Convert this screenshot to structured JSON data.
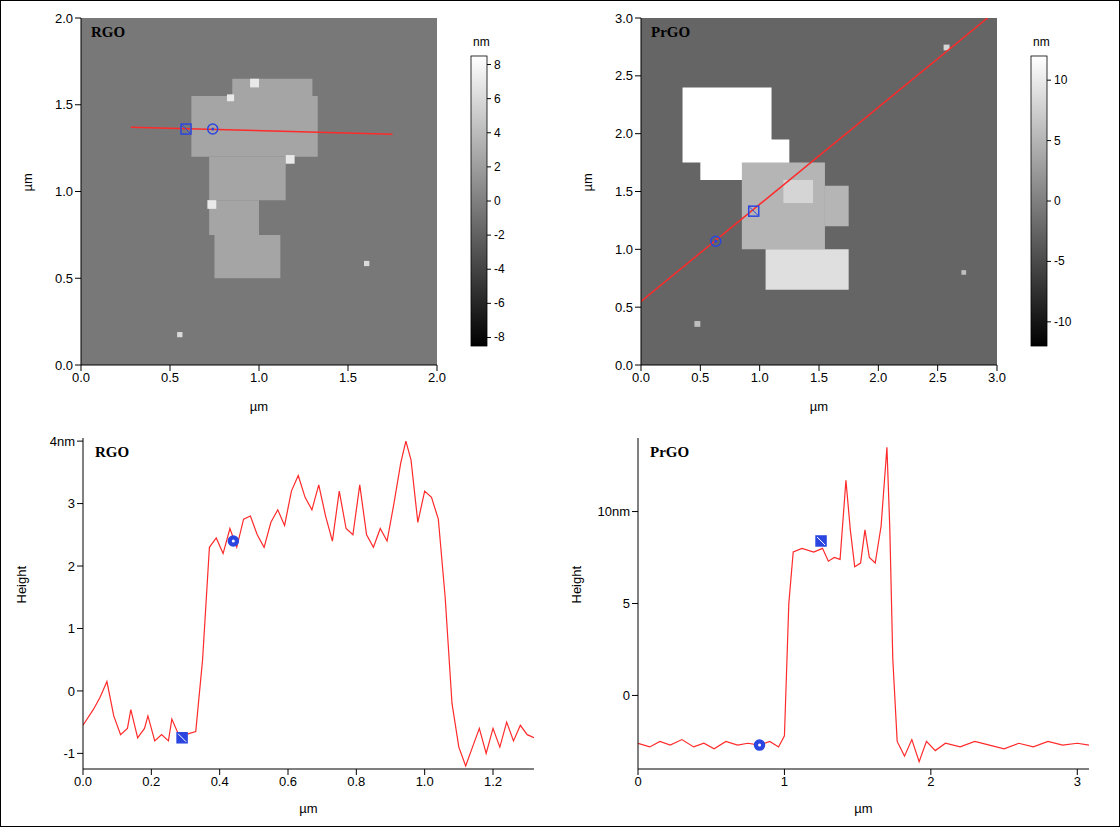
{
  "chart_data": [
    {
      "type": "heatmap",
      "title": "RGO",
      "xlabel": "µm",
      "ylabel": "µm",
      "xlim": [
        0,
        2
      ],
      "ylim": [
        0,
        2
      ],
      "xticks": [
        {
          "value": 0,
          "label": "0.0"
        },
        {
          "value": 0.5,
          "label": "0.5"
        },
        {
          "value": 1,
          "label": "1.0"
        },
        {
          "value": 1.5,
          "label": "1.5"
        },
        {
          "value": 2,
          "label": "2.0"
        }
      ],
      "yticks": [
        {
          "value": 0,
          "label": "0.0"
        },
        {
          "value": 0.5,
          "label": "0.5"
        },
        {
          "value": 1,
          "label": "1.0"
        },
        {
          "value": 1.5,
          "label": "1.5"
        },
        {
          "value": 2,
          "label": "2.0"
        }
      ],
      "background_height": -0.5,
      "regions": [
        [
          0.62,
          1.33,
          1.2,
          1.55,
          2.5
        ],
        [
          0.85,
          1.3,
          1.55,
          1.65,
          2.5
        ],
        [
          0.72,
          1.15,
          0.95,
          1.2,
          2.5
        ],
        [
          0.72,
          1.0,
          0.75,
          0.95,
          2.5
        ],
        [
          0.75,
          1.12,
          0.5,
          0.75,
          2.5
        ],
        [
          0.95,
          1.0,
          1.6,
          1.65,
          7
        ],
        [
          0.71,
          0.76,
          0.9,
          0.95,
          7
        ],
        [
          1.15,
          1.2,
          1.16,
          1.21,
          7
        ],
        [
          0.82,
          0.86,
          1.52,
          1.56,
          7
        ],
        [
          0.54,
          0.57,
          0.16,
          0.19,
          6
        ],
        [
          1.59,
          1.62,
          0.57,
          0.6,
          6
        ]
      ],
      "colorbar": {
        "label": "nm",
        "range": [
          -8.5,
          8.5
        ],
        "ticks": [
          8,
          6,
          4,
          2,
          0,
          -2,
          -4,
          -6,
          -8
        ]
      },
      "scan_line": {
        "start": [
          0.28,
          1.37
        ],
        "end": [
          1.75,
          1.33
        ],
        "color": "#ff2a2a"
      },
      "markers": [
        {
          "x": 0.59,
          "y": 1.36,
          "marker": "square",
          "color": "#2b46e0"
        },
        {
          "x": 0.74,
          "y": 1.36,
          "marker": "circle",
          "color": "#2b46e0"
        }
      ]
    },
    {
      "type": "heatmap",
      "title": "PrGO",
      "xlabel": "µm",
      "ylabel": "µm",
      "xlim": [
        0,
        3
      ],
      "ylim": [
        0,
        3
      ],
      "xticks": [
        {
          "value": 0,
          "label": "0.0"
        },
        {
          "value": 0.5,
          "label": "0.5"
        },
        {
          "value": 1,
          "label": "1.0"
        },
        {
          "value": 1.5,
          "label": "1.5"
        },
        {
          "value": 2,
          "label": "2.0"
        },
        {
          "value": 2.5,
          "label": "2.5"
        },
        {
          "value": 3,
          "label": "3.0"
        }
      ],
      "yticks": [
        {
          "value": 0,
          "label": "0.0"
        },
        {
          "value": 0.5,
          "label": "0.5"
        },
        {
          "value": 1,
          "label": "1.0"
        },
        {
          "value": 1.5,
          "label": "1.5"
        },
        {
          "value": 2,
          "label": "2.0"
        },
        {
          "value": 2.5,
          "label": "2.5"
        },
        {
          "value": 3,
          "label": "3.0"
        }
      ],
      "background_height": -2.5,
      "regions": [
        [
          0.35,
          1.1,
          1.75,
          2.4,
          13
        ],
        [
          0.5,
          1.25,
          1.6,
          1.95,
          13
        ],
        [
          0.85,
          1.55,
          1.0,
          1.75,
          5
        ],
        [
          1.55,
          1.75,
          1.2,
          1.55,
          5
        ],
        [
          1.05,
          1.75,
          0.65,
          1.0,
          9
        ],
        [
          1.2,
          1.45,
          1.4,
          1.6,
          8
        ],
        [
          2.55,
          2.6,
          2.72,
          2.77,
          8
        ],
        [
          0.45,
          0.5,
          0.33,
          0.38,
          6
        ],
        [
          2.7,
          2.74,
          0.78,
          0.82,
          6
        ]
      ],
      "colorbar": {
        "label": "nm",
        "range": [
          -12,
          12
        ],
        "ticks": [
          10,
          5,
          0,
          -5,
          -10
        ]
      },
      "scan_line": {
        "start": [
          0,
          0.55
        ],
        "end": [
          2.92,
          3
        ],
        "color": "#ff2a2a"
      },
      "markers": [
        {
          "x": 0.63,
          "y": 1.07,
          "marker": "circle",
          "color": "#2b46e0"
        },
        {
          "x": 0.95,
          "y": 1.33,
          "marker": "square",
          "color": "#2b46e0"
        }
      ]
    },
    {
      "type": "line",
      "title": "RGO",
      "xlabel": "µm",
      "ylabel": "Height",
      "color": "#ff2a2a",
      "xlim": [
        0,
        1.32
      ],
      "ylim": [
        -1.25,
        4.05
      ],
      "xticks": [
        {
          "value": 0,
          "label": "0.0"
        },
        {
          "value": 0.2,
          "label": "0.2"
        },
        {
          "value": 0.4,
          "label": "0.4"
        },
        {
          "value": 0.6,
          "label": "0.6"
        },
        {
          "value": 0.8,
          "label": "0.8"
        },
        {
          "value": 1,
          "label": "1.0"
        },
        {
          "value": 1.2,
          "label": "1.2"
        }
      ],
      "yticks": [
        -1,
        0,
        1,
        2,
        3,
        {
          "value": 4,
          "label": "4nm"
        }
      ],
      "x": [
        0,
        0.03,
        0.05,
        0.07,
        0.09,
        0.11,
        0.13,
        0.14,
        0.16,
        0.18,
        0.19,
        0.21,
        0.23,
        0.25,
        0.26,
        0.28,
        0.3,
        0.33,
        0.35,
        0.37,
        0.39,
        0.41,
        0.43,
        0.45,
        0.47,
        0.49,
        0.51,
        0.53,
        0.55,
        0.57,
        0.59,
        0.61,
        0.63,
        0.65,
        0.67,
        0.69,
        0.71,
        0.73,
        0.75,
        0.77,
        0.79,
        0.81,
        0.83,
        0.85,
        0.87,
        0.89,
        0.91,
        0.93,
        0.945,
        0.96,
        0.98,
        1.0,
        1.02,
        1.04,
        1.06,
        1.08,
        1.1,
        1.12,
        1.14,
        1.16,
        1.18,
        1.2,
        1.22,
        1.24,
        1.26,
        1.28,
        1.3,
        1.32
      ],
      "values": [
        -0.55,
        -0.3,
        -0.1,
        0.15,
        -0.4,
        -0.7,
        -0.6,
        -0.3,
        -0.75,
        -0.6,
        -0.4,
        -0.8,
        -0.7,
        -0.8,
        -0.45,
        -0.7,
        -0.7,
        -0.65,
        0.5,
        2.3,
        2.45,
        2.2,
        2.6,
        2.3,
        2.75,
        2.8,
        2.5,
        2.3,
        2.7,
        2.9,
        2.65,
        3.2,
        3.45,
        3.1,
        2.9,
        3.3,
        2.8,
        2.4,
        3.2,
        2.6,
        2.5,
        3.3,
        2.5,
        2.3,
        2.6,
        2.4,
        3.0,
        3.65,
        4.0,
        3.7,
        2.7,
        3.2,
        3.1,
        2.75,
        1.5,
        -0.2,
        -0.9,
        -1.2,
        -0.9,
        -0.6,
        -1.0,
        -0.6,
        -0.9,
        -0.5,
        -0.8,
        -0.55,
        -0.7,
        -0.75
      ],
      "markers": [
        {
          "x": 0.29,
          "y": -0.75,
          "marker": "square",
          "color": "#2b46e0"
        },
        {
          "x": 0.44,
          "y": 2.4,
          "marker": "circle",
          "color": "#2b46e0"
        }
      ]
    },
    {
      "type": "line",
      "title": "PrGO",
      "xlabel": "µm",
      "ylabel": "Height",
      "color": "#ff2a2a",
      "xlim": [
        0,
        3.08
      ],
      "ylim": [
        -4,
        14
      ],
      "xticks": [
        0,
        1,
        2,
        3
      ],
      "yticks": [
        0,
        5,
        {
          "value": 10,
          "label": "10nm"
        }
      ],
      "x": [
        0,
        0.08,
        0.15,
        0.22,
        0.3,
        0.38,
        0.45,
        0.52,
        0.6,
        0.68,
        0.75,
        0.83,
        0.9,
        0.96,
        1.0,
        1.03,
        1.06,
        1.12,
        1.2,
        1.26,
        1.3,
        1.34,
        1.38,
        1.42,
        1.45,
        1.48,
        1.52,
        1.55,
        1.58,
        1.62,
        1.66,
        1.7,
        1.72,
        1.74,
        1.77,
        1.82,
        1.87,
        1.92,
        1.97,
        2.03,
        2.1,
        2.2,
        2.3,
        2.4,
        2.5,
        2.6,
        2.7,
        2.8,
        2.9,
        3.0,
        3.08
      ],
      "values": [
        -2.6,
        -2.8,
        -2.5,
        -2.7,
        -2.4,
        -2.8,
        -2.6,
        -2.9,
        -2.5,
        -2.7,
        -2.6,
        -2.7,
        -2.5,
        -2.8,
        -2.2,
        5.0,
        7.8,
        8.0,
        7.8,
        8.0,
        7.3,
        7.5,
        7.4,
        11.7,
        9.0,
        7.0,
        7.2,
        9.0,
        7.5,
        7.2,
        9.2,
        13.5,
        9.0,
        2.0,
        -2.5,
        -3.3,
        -2.4,
        -3.6,
        -2.5,
        -3.0,
        -2.6,
        -2.8,
        -2.5,
        -2.7,
        -2.9,
        -2.6,
        -2.8,
        -2.5,
        -2.7,
        -2.6,
        -2.7
      ],
      "markers": [
        {
          "x": 0.83,
          "y": -2.7,
          "marker": "circle",
          "color": "#2b46e0"
        },
        {
          "x": 1.25,
          "y": 8.4,
          "marker": "square",
          "color": "#2b46e0"
        }
      ]
    }
  ]
}
